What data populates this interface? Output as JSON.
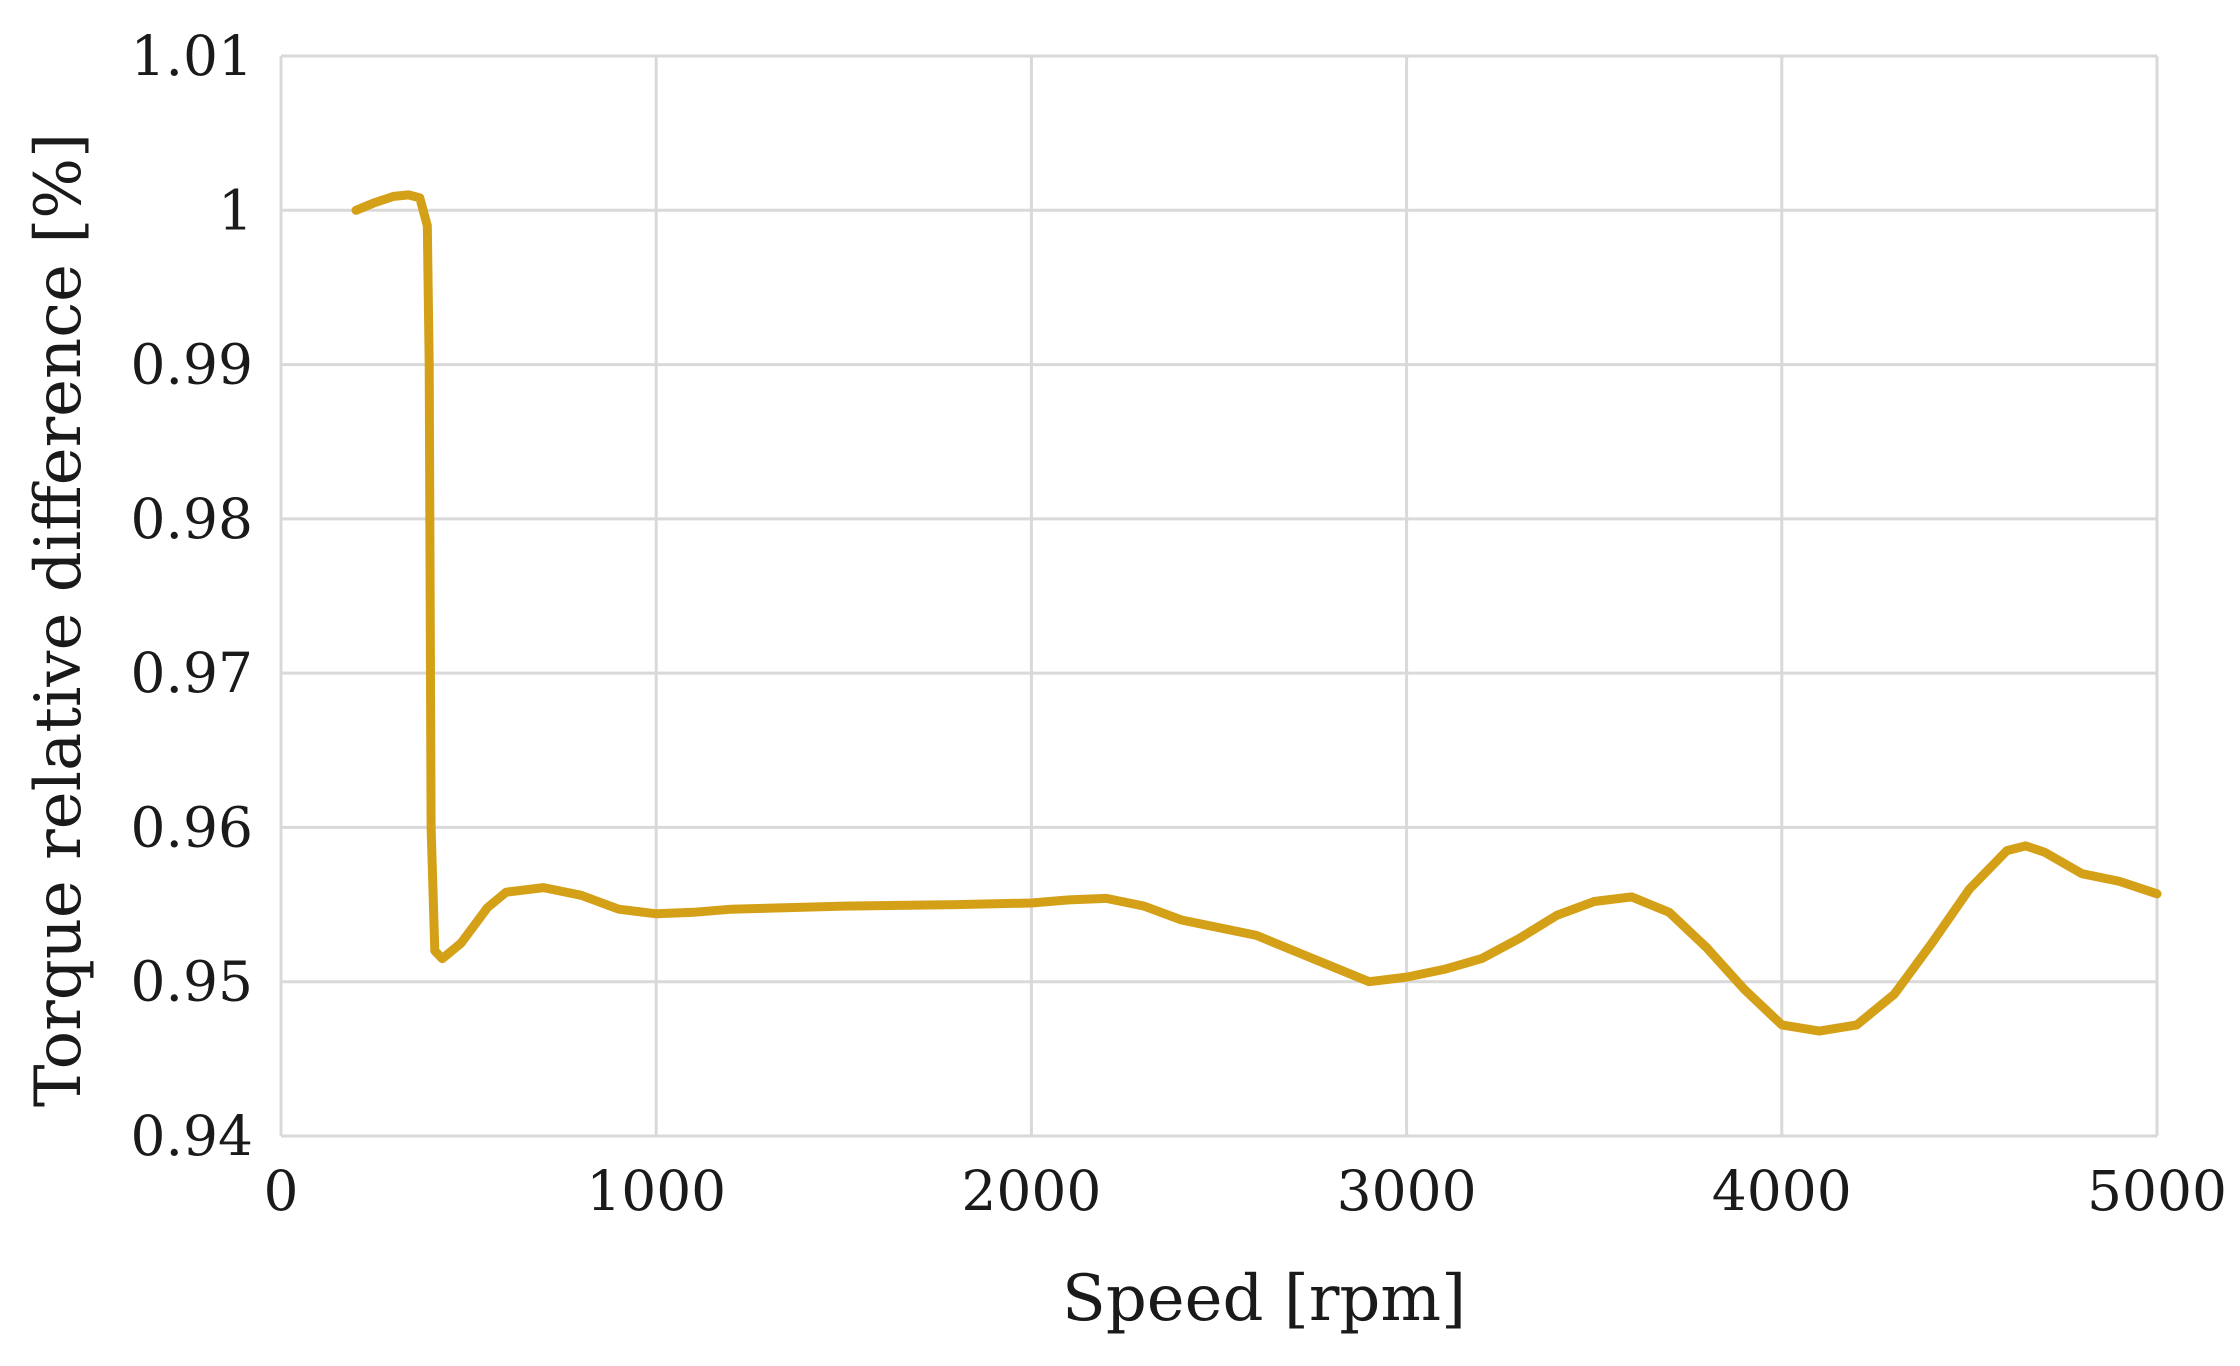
{
  "chart_data": {
    "type": "line",
    "xlabel": "Speed [rpm]",
    "ylabel": "Torque relative difference [%]",
    "xlim": [
      0,
      5000
    ],
    "ylim": [
      0.94,
      1.01
    ],
    "x_ticks": [
      "0",
      "1000",
      "2000",
      "3000",
      "4000",
      "5000"
    ],
    "y_ticks": [
      "0.94",
      "0.95",
      "0.96",
      "0.97",
      "0.98",
      "0.99",
      "1",
      "1.01"
    ],
    "x_tick_values": [
      0,
      1000,
      2000,
      3000,
      4000,
      5000
    ],
    "y_tick_values": [
      0.94,
      0.95,
      0.96,
      0.97,
      0.98,
      0.99,
      1.0,
      1.01
    ],
    "grid": true,
    "series": [
      {
        "color": "#D4A017",
        "x": [
          200,
          250,
          300,
          340,
          370,
          390,
          395,
          400,
          410,
          430,
          480,
          550,
          600,
          700,
          800,
          900,
          1000,
          1100,
          1200,
          1500,
          1800,
          2000,
          2100,
          2200,
          2300,
          2400,
          2500,
          2600,
          2700,
          2800,
          2900,
          3000,
          3100,
          3200,
          3300,
          3400,
          3500,
          3600,
          3700,
          3800,
          3900,
          4000,
          4100,
          4200,
          4300,
          4400,
          4500,
          4600,
          4650,
          4700,
          4800,
          4900,
          5000
        ],
        "y": [
          1.0,
          1.0005,
          1.0009,
          1.001,
          1.0008,
          0.999,
          0.99,
          0.96,
          0.952,
          0.9515,
          0.9525,
          0.9548,
          0.9558,
          0.9561,
          0.9556,
          0.9547,
          0.9544,
          0.9545,
          0.9547,
          0.9549,
          0.955,
          0.9551,
          0.9553,
          0.9554,
          0.9549,
          0.954,
          0.9535,
          0.953,
          0.952,
          0.951,
          0.95,
          0.9503,
          0.9508,
          0.9515,
          0.9528,
          0.9543,
          0.9552,
          0.9555,
          0.9545,
          0.9522,
          0.9495,
          0.9472,
          0.9468,
          0.9472,
          0.9492,
          0.9525,
          0.956,
          0.9585,
          0.9588,
          0.9584,
          0.957,
          0.9565,
          0.9557
        ]
      }
    ]
  }
}
